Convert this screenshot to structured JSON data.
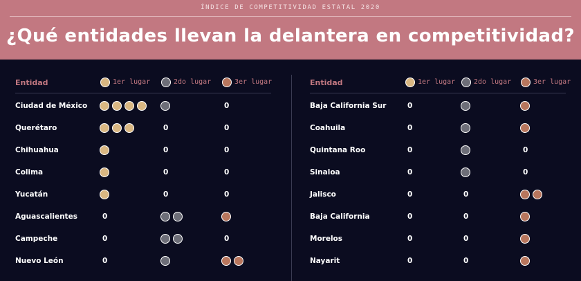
{
  "header": {
    "kicker": "ÍNDICE DE COMPETITIVIDAD ESTATAL 2020",
    "title": "¿Qué entidades llevan la delantera en competitividad?"
  },
  "colors": {
    "header_bg": "#c27881",
    "background": "#0b0c20",
    "gold": "#d9b782",
    "silver": "#6d6e78",
    "bronze": "#b8765d"
  },
  "columns": {
    "entity": "Entidad",
    "first": "1er lugar",
    "second": "2do lugar",
    "third": "3er lugar"
  },
  "left": [
    {
      "name": "Ciudad de México",
      "first": 4,
      "second": 1,
      "third": 0
    },
    {
      "name": "Querétaro",
      "first": 3,
      "second": 0,
      "third": 0
    },
    {
      "name": "Chihuahua",
      "first": 1,
      "second": 0,
      "third": 0
    },
    {
      "name": "Colima",
      "first": 1,
      "second": 0,
      "third": 0
    },
    {
      "name": "Yucatán",
      "first": 1,
      "second": 0,
      "third": 0
    },
    {
      "name": "Aguascalientes",
      "first": 0,
      "second": 2,
      "third": 1
    },
    {
      "name": "Campeche",
      "first": 0,
      "second": 2,
      "third": 0
    },
    {
      "name": "Nuevo León",
      "first": 0,
      "second": 1,
      "third": 2
    }
  ],
  "right": [
    {
      "name": "Baja California Sur",
      "first": 0,
      "second": 1,
      "third": 1
    },
    {
      "name": "Coahuila",
      "first": 0,
      "second": 1,
      "third": 1
    },
    {
      "name": "Quintana Roo",
      "first": 0,
      "second": 1,
      "third": 0
    },
    {
      "name": "Sinaloa",
      "first": 0,
      "second": 1,
      "third": 0
    },
    {
      "name": "Jalisco",
      "first": 0,
      "second": 0,
      "third": 2
    },
    {
      "name": "Baja California",
      "first": 0,
      "second": 0,
      "third": 1
    },
    {
      "name": "Morelos",
      "first": 0,
      "second": 0,
      "third": 1
    },
    {
      "name": "Nayarit",
      "first": 0,
      "second": 0,
      "third": 1
    }
  ]
}
